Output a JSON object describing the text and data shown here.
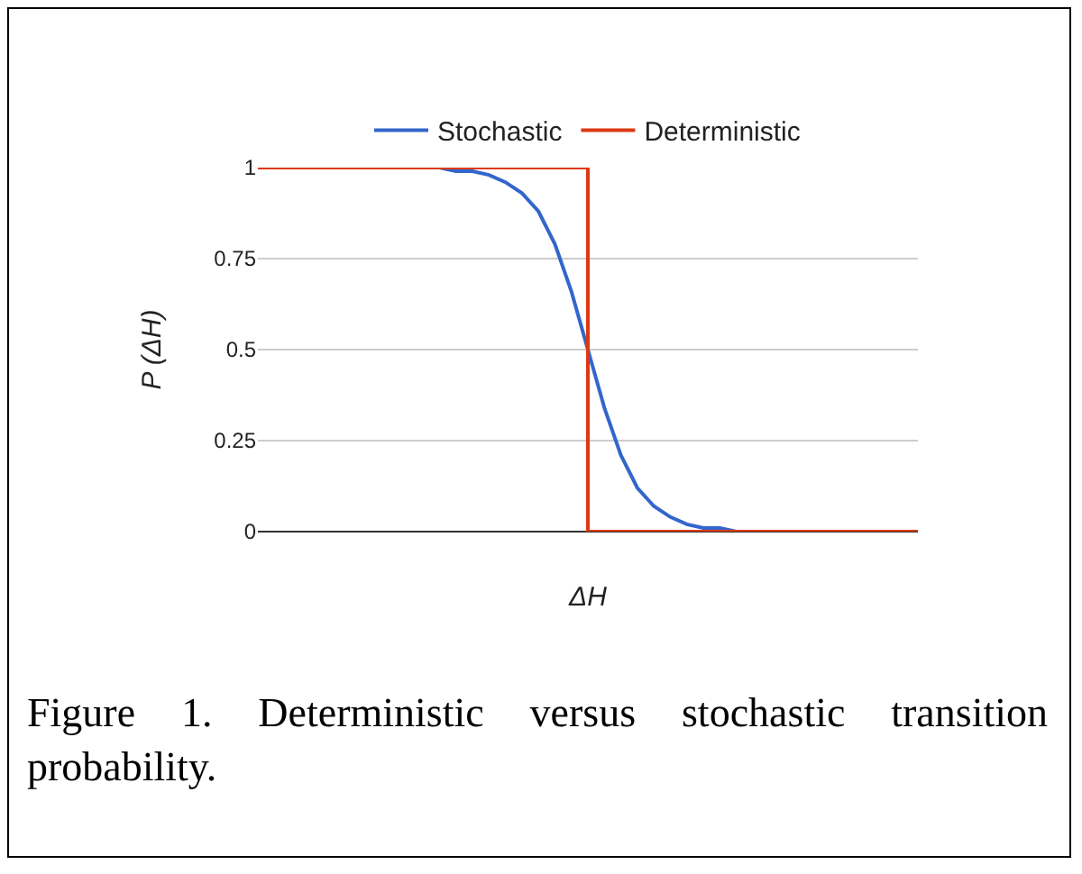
{
  "chart_data": {
    "type": "line",
    "xlabel": "ΔH",
    "ylabel": "P (ΔH)",
    "categories": [
      null,
      null,
      null,
      null,
      null,
      null,
      null,
      null,
      null,
      null,
      null,
      null,
      null,
      null,
      null,
      null,
      null,
      null,
      null,
      null,
      null,
      null,
      null,
      null,
      null,
      null,
      null,
      null,
      null,
      null,
      null,
      null,
      null,
      null,
      null,
      null,
      null,
      null,
      null,
      null,
      null
    ],
    "series": [
      {
        "name": "Stochastic",
        "color": "#3366cc",
        "values": [
          null,
          null,
          null,
          null,
          null,
          null,
          null,
          null,
          null,
          null,
          null,
          1,
          0.99,
          0.99,
          0.98,
          0.96,
          0.93,
          0.88,
          0.79,
          0.66,
          0.5,
          0.34,
          0.21,
          0.12,
          0.07,
          0.04,
          0.02,
          0.01,
          0.01,
          0,
          null,
          null,
          null,
          null,
          null,
          null,
          null,
          null,
          null,
          null,
          null
        ]
      },
      {
        "name": "Deterministic",
        "type": "step",
        "color": "#dc3912",
        "values": [
          1,
          1,
          1,
          1,
          1,
          1,
          1,
          1,
          1,
          1,
          1,
          1,
          1,
          1,
          1,
          1,
          1,
          1,
          1,
          1,
          1,
          0,
          0,
          0,
          0,
          0,
          0,
          0,
          0,
          0,
          0,
          0,
          0,
          0,
          0,
          0,
          0,
          0,
          0,
          0,
          0
        ]
      }
    ],
    "ylim": [
      0,
      1
    ],
    "yticks": [
      0,
      0.25,
      0.5,
      0.75,
      1
    ],
    "grid": "y",
    "legend": "top",
    "tick_labels": "y",
    "annotations": [
      "Figure 1. Deterministic versus stochastic transition probability."
    ]
  }
}
